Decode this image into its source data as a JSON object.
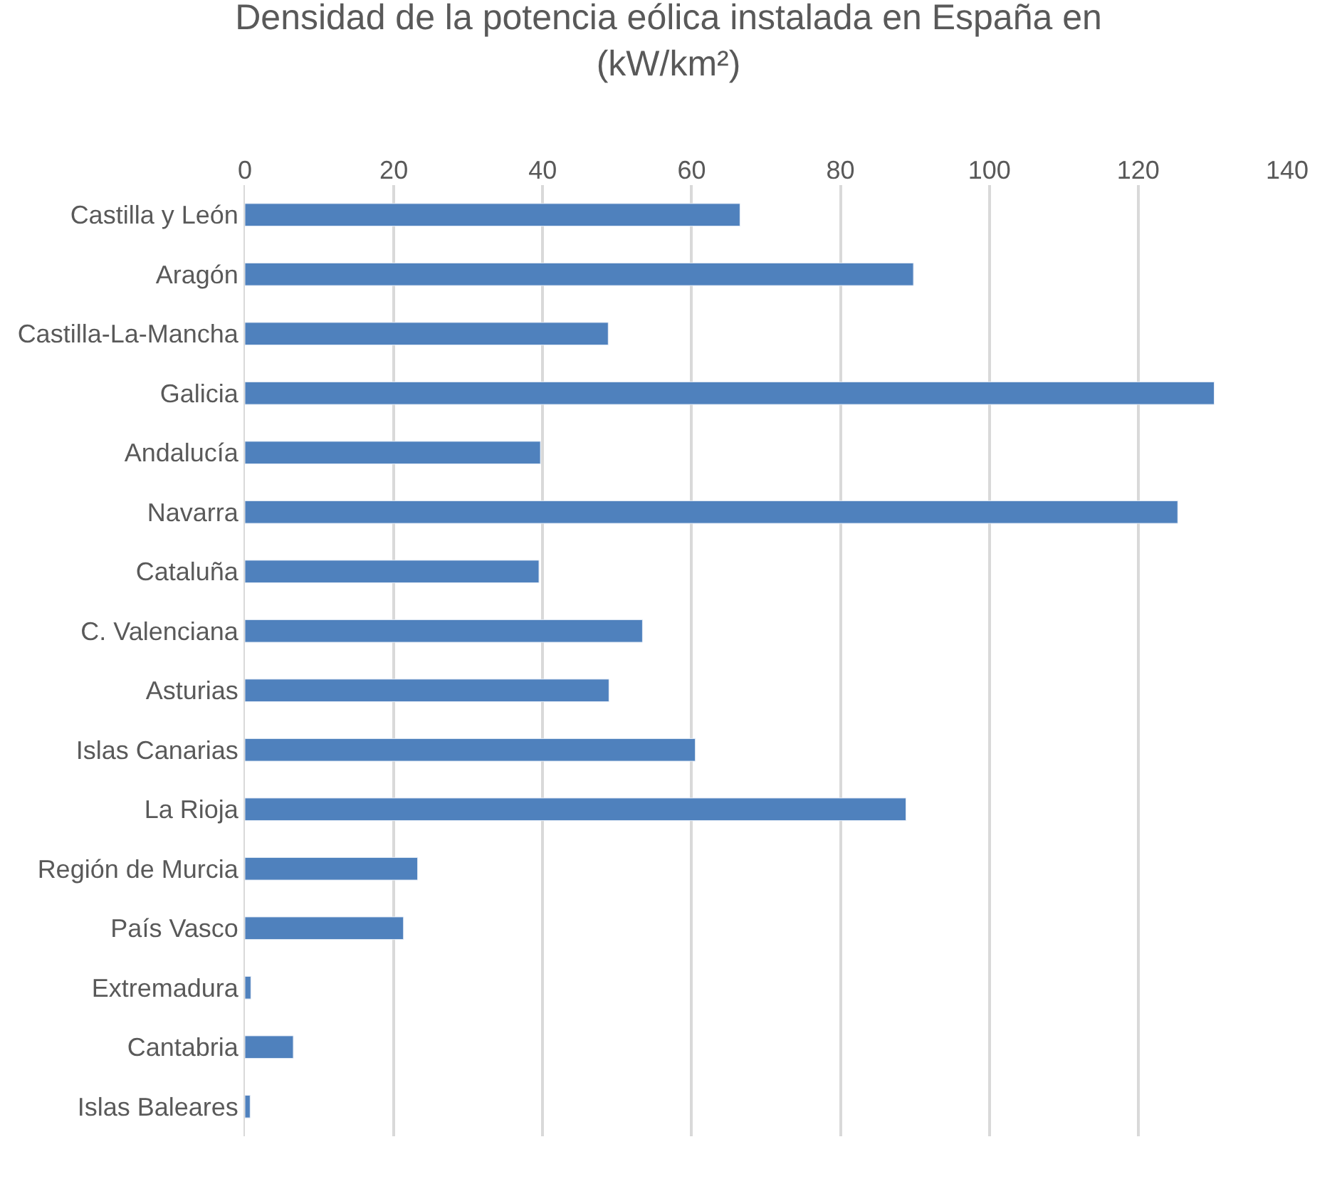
{
  "chart_data": {
    "type": "bar",
    "orientation": "horizontal",
    "title": "Densidad de la potencia eólica instalada en España en\n(kW/km²)",
    "categories": [
      "Castilla y León",
      "Aragón",
      "Castilla-La-Mancha",
      "Galicia",
      "Andalucía",
      "Navarra",
      "Cataluña",
      "C. Valenciana",
      "Asturias",
      "Islas Canarias",
      "La Rioja",
      "Región de Murcia",
      "País Vasco",
      "Extremadura",
      "Cantabria",
      "Islas Baleares"
    ],
    "values": [
      66.5,
      89.8,
      48.8,
      130.2,
      39.7,
      125.3,
      39.5,
      53.4,
      48.9,
      60.5,
      88.8,
      23.2,
      21.3,
      0.8,
      6.5,
      0.7
    ],
    "color": "#4f81bd",
    "xlim": [
      0,
      140
    ],
    "xticks": [
      0,
      20,
      40,
      60,
      80,
      100,
      120,
      140
    ],
    "grid": "x"
  }
}
